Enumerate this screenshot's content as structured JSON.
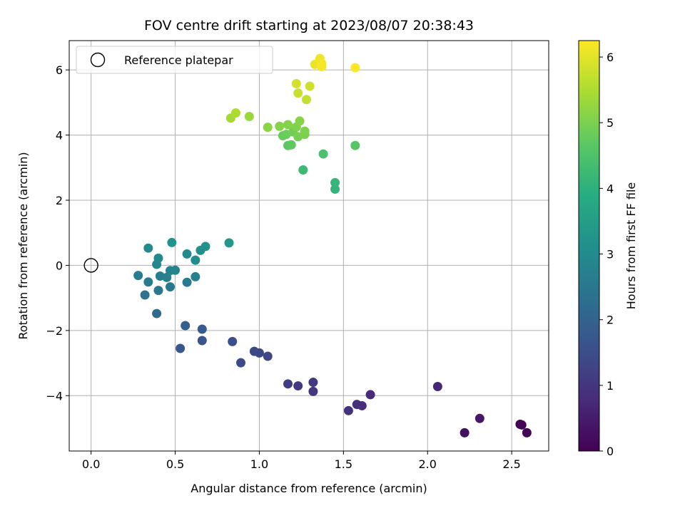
{
  "chart_data": {
    "type": "scatter",
    "title": "FOV centre drift starting at 2023/08/07 20:38:43",
    "xlabel": "Angular distance from reference (arcmin)",
    "ylabel": "Rotation from reference (arcmin)",
    "xlim": [
      -0.13,
      2.72
    ],
    "ylim": [
      -5.7,
      6.9
    ],
    "xticks": [
      0.0,
      0.5,
      1.0,
      1.5,
      2.0,
      2.5
    ],
    "xtick_labels": [
      "0.0",
      "0.5",
      "1.0",
      "1.5",
      "2.0",
      "2.5"
    ],
    "yticks": [
      -4,
      -2,
      0,
      2,
      4,
      6
    ],
    "ytick_labels": [
      "−4",
      "−2",
      "0",
      "2",
      "4",
      "6"
    ],
    "grid": true,
    "legend": {
      "position": "top-left",
      "entries": [
        {
          "label": "Reference platepar",
          "marker": "hollow-circle"
        }
      ]
    },
    "reference_point": {
      "x": 0.0,
      "y": 0.0
    },
    "colorbar": {
      "label": "Hours from first FF file",
      "colormap": "viridis",
      "range": [
        0,
        6.25
      ],
      "ticks": [
        0,
        1,
        2,
        3,
        4,
        5,
        6
      ],
      "tick_labels": [
        "0",
        "1",
        "2",
        "3",
        "4",
        "5",
        "6"
      ]
    },
    "points": [
      {
        "x": 2.55,
        "y": -4.88,
        "t": 0.02
      },
      {
        "x": 2.59,
        "y": -5.14,
        "t": 0.05
      },
      {
        "x": 2.56,
        "y": -4.9,
        "t": 0.08
      },
      {
        "x": 2.22,
        "y": -5.14,
        "t": 0.25
      },
      {
        "x": 2.31,
        "y": -4.7,
        "t": 0.4
      },
      {
        "x": 2.06,
        "y": -3.72,
        "t": 0.7
      },
      {
        "x": 1.66,
        "y": -3.97,
        "t": 0.75
      },
      {
        "x": 1.61,
        "y": -4.31,
        "t": 0.8
      },
      {
        "x": 1.58,
        "y": -4.27,
        "t": 0.85
      },
      {
        "x": 1.53,
        "y": -4.46,
        "t": 0.9
      },
      {
        "x": 1.32,
        "y": -3.87,
        "t": 1.0
      },
      {
        "x": 1.32,
        "y": -3.59,
        "t": 1.05
      },
      {
        "x": 1.23,
        "y": -3.7,
        "t": 1.1
      },
      {
        "x": 1.17,
        "y": -3.64,
        "t": 1.15
      },
      {
        "x": 1.05,
        "y": -2.79,
        "t": 1.3
      },
      {
        "x": 1.0,
        "y": -2.69,
        "t": 1.35
      },
      {
        "x": 0.97,
        "y": -2.64,
        "t": 1.4
      },
      {
        "x": 0.89,
        "y": -2.99,
        "t": 1.45
      },
      {
        "x": 0.84,
        "y": -2.34,
        "t": 1.55
      },
      {
        "x": 0.66,
        "y": -2.31,
        "t": 1.65
      },
      {
        "x": 0.53,
        "y": -2.55,
        "t": 1.7
      },
      {
        "x": 0.66,
        "y": -1.96,
        "t": 1.8
      },
      {
        "x": 0.56,
        "y": -1.85,
        "t": 1.9
      },
      {
        "x": 0.39,
        "y": -1.48,
        "t": 2.2
      },
      {
        "x": 0.32,
        "y": -0.91,
        "t": 2.4
      },
      {
        "x": 0.4,
        "y": -0.77,
        "t": 2.5
      },
      {
        "x": 0.47,
        "y": -0.66,
        "t": 2.55
      },
      {
        "x": 0.57,
        "y": -0.52,
        "t": 2.6
      },
      {
        "x": 0.34,
        "y": -0.51,
        "t": 2.62
      },
      {
        "x": 0.28,
        "y": -0.31,
        "t": 2.65
      },
      {
        "x": 0.41,
        "y": -0.33,
        "t": 2.7
      },
      {
        "x": 0.45,
        "y": -0.37,
        "t": 2.75
      },
      {
        "x": 0.47,
        "y": -0.16,
        "t": 2.8
      },
      {
        "x": 0.5,
        "y": -0.15,
        "t": 2.85
      },
      {
        "x": 0.62,
        "y": -0.35,
        "t": 2.75
      },
      {
        "x": 0.39,
        "y": 0.03,
        "t": 2.9
      },
      {
        "x": 0.4,
        "y": 0.22,
        "t": 2.95
      },
      {
        "x": 0.34,
        "y": 0.53,
        "t": 3.0
      },
      {
        "x": 0.57,
        "y": 0.35,
        "t": 3.0
      },
      {
        "x": 0.62,
        "y": 0.16,
        "t": 3.05
      },
      {
        "x": 0.65,
        "y": 0.46,
        "t": 3.1
      },
      {
        "x": 0.68,
        "y": 0.58,
        "t": 3.15
      },
      {
        "x": 0.48,
        "y": 0.7,
        "t": 3.2
      },
      {
        "x": 0.82,
        "y": 0.69,
        "t": 3.35
      },
      {
        "x": 1.45,
        "y": 2.34,
        "t": 4.1
      },
      {
        "x": 1.45,
        "y": 2.54,
        "t": 4.15
      },
      {
        "x": 1.26,
        "y": 2.93,
        "t": 4.25
      },
      {
        "x": 1.38,
        "y": 3.42,
        "t": 4.45
      },
      {
        "x": 1.57,
        "y": 3.68,
        "t": 4.6
      },
      {
        "x": 1.17,
        "y": 3.68,
        "t": 4.65
      },
      {
        "x": 1.19,
        "y": 3.7,
        "t": 4.7
      },
      {
        "x": 1.14,
        "y": 3.98,
        "t": 4.8
      },
      {
        "x": 1.16,
        "y": 4.02,
        "t": 4.85
      },
      {
        "x": 1.2,
        "y": 4.1,
        "t": 4.9
      },
      {
        "x": 1.23,
        "y": 3.95,
        "t": 4.95
      },
      {
        "x": 1.27,
        "y": 4.02,
        "t": 5.0
      },
      {
        "x": 1.27,
        "y": 4.12,
        "t": 5.02
      },
      {
        "x": 1.22,
        "y": 4.25,
        "t": 5.05
      },
      {
        "x": 1.17,
        "y": 4.32,
        "t": 5.08
      },
      {
        "x": 1.24,
        "y": 4.43,
        "t": 5.1
      },
      {
        "x": 1.12,
        "y": 4.27,
        "t": 5.1
      },
      {
        "x": 1.05,
        "y": 4.24,
        "t": 5.15
      },
      {
        "x": 0.94,
        "y": 4.57,
        "t": 5.3
      },
      {
        "x": 0.83,
        "y": 4.52,
        "t": 5.4
      },
      {
        "x": 0.86,
        "y": 4.68,
        "t": 5.5
      },
      {
        "x": 1.28,
        "y": 5.09,
        "t": 5.7
      },
      {
        "x": 1.23,
        "y": 5.29,
        "t": 5.75
      },
      {
        "x": 1.3,
        "y": 5.5,
        "t": 5.8
      },
      {
        "x": 1.22,
        "y": 5.58,
        "t": 5.85
      },
      {
        "x": 1.33,
        "y": 6.17,
        "t": 6.05
      },
      {
        "x": 1.36,
        "y": 6.35,
        "t": 6.1
      },
      {
        "x": 1.37,
        "y": 6.2,
        "t": 6.15
      },
      {
        "x": 1.37,
        "y": 6.1,
        "t": 6.18
      },
      {
        "x": 1.57,
        "y": 6.07,
        "t": 6.25
      }
    ]
  }
}
